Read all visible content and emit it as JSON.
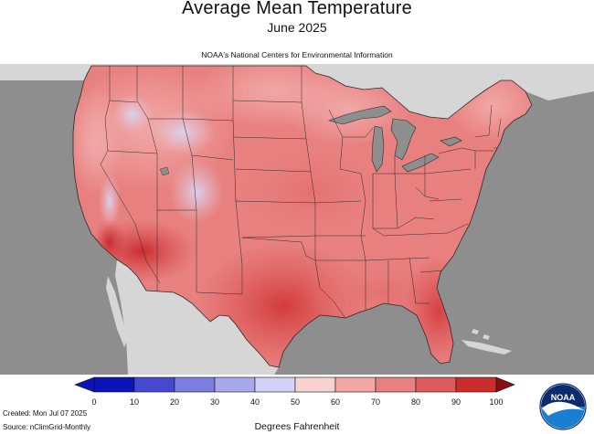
{
  "header": {
    "title": "Average Mean Temperature",
    "subtitle": "June 2025",
    "source": "NOAA's National Centers for Environmental Information"
  },
  "legend": {
    "label": "Degrees Fahrenheit",
    "ticks": [
      "0",
      "10",
      "20",
      "30",
      "40",
      "50",
      "60",
      "70",
      "80",
      "90",
      "100"
    ],
    "colors": [
      "#0b14b8",
      "#4549cf",
      "#7b7de0",
      "#a8a9ec",
      "#d2d2f8",
      "#f9d1d0",
      "#f3a8a6",
      "#e88080",
      "#df5b5b",
      "#cb2c2e"
    ]
  },
  "footer": {
    "created": "Created: Mon Jul 07 2025",
    "source": "Source: nClimGrid-Monthly"
  },
  "logo": {
    "text": "NOAA"
  },
  "colors": {
    "ocean": "#8e8e8e",
    "land_outside": "#d6d6d6",
    "lakes": "#8e8e8e",
    "border": "#2a2a2a"
  }
}
